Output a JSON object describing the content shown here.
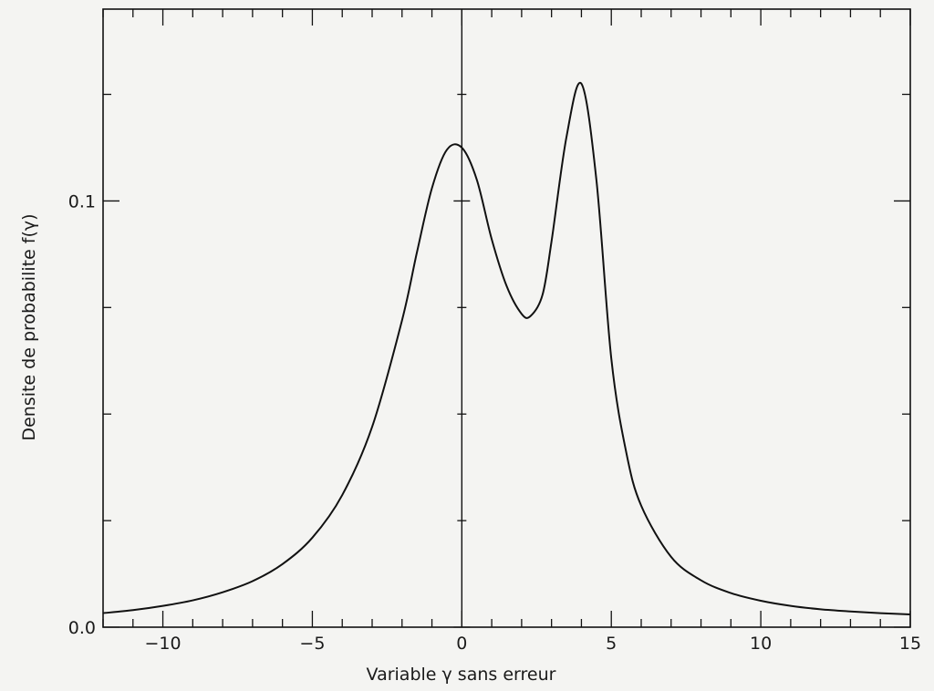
{
  "chart_data": {
    "type": "line",
    "title": "",
    "xlabel": "Variable γ sans erreur",
    "ylabel": "Densite de probabilite f(γ)",
    "xlim": [
      -12,
      15
    ],
    "ylim": [
      0,
      0.145
    ],
    "x_ticks": [
      -10,
      -5,
      0,
      5,
      10,
      15
    ],
    "x_tick_labels": [
      "−10",
      "−5",
      "0",
      "5",
      "10",
      "15"
    ],
    "x_minor_step": 1,
    "y_ticks": [
      0.0,
      0.1
    ],
    "y_tick_labels": [
      "0.0",
      "0.1"
    ],
    "y_minor_step": 0.025,
    "vertical_line_at_x": 0,
    "grid": false,
    "series": [
      {
        "x": [
          -12,
          -11,
          -10,
          -9,
          -8,
          -7,
          -6,
          -5,
          -4,
          -3,
          -2,
          -1.5,
          -1,
          -0.5,
          0,
          0.5,
          1,
          1.5,
          2,
          2.3,
          2.7,
          3,
          3.5,
          4,
          4.5,
          5,
          5.5,
          6,
          7,
          8,
          9,
          10,
          11,
          12,
          13,
          14,
          15
        ],
        "y": [
          0.0033,
          0.004,
          0.005,
          0.0063,
          0.0082,
          0.0108,
          0.0148,
          0.021,
          0.031,
          0.047,
          0.072,
          0.088,
          0.103,
          0.112,
          0.1125,
          0.105,
          0.091,
          0.08,
          0.0735,
          0.073,
          0.078,
          0.0905,
          0.115,
          0.1275,
          0.105,
          0.063,
          0.041,
          0.0285,
          0.0165,
          0.011,
          0.008,
          0.0062,
          0.005,
          0.0042,
          0.0037,
          0.0033,
          0.003
        ]
      }
    ]
  }
}
